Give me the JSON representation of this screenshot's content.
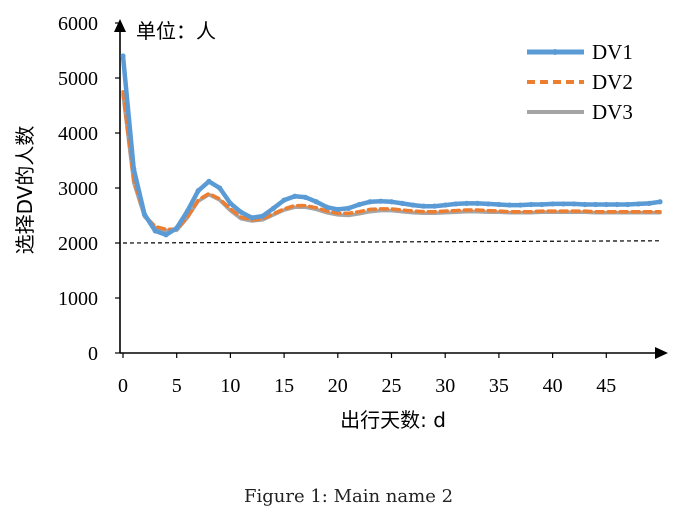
{
  "caption": "Figure 1: Main name 2",
  "chart_data": {
    "type": "line",
    "title": "",
    "unit_label": "单位：人",
    "xlabel": "出行天数: d",
    "ylabel": "选择DV的人数",
    "xlim": [
      0,
      50
    ],
    "ylim": [
      0,
      6000
    ],
    "x_ticks": [
      0,
      5,
      10,
      15,
      20,
      25,
      30,
      35,
      40,
      45
    ],
    "y_ticks": [
      0,
      1000,
      2000,
      3000,
      4000,
      5000,
      6000
    ],
    "legend_position": "top-right",
    "reference_line": {
      "y": 2000,
      "y_end": 2040,
      "style": "dashed",
      "color": "#000000"
    },
    "x": [
      0,
      1,
      2,
      3,
      4,
      5,
      6,
      7,
      8,
      9,
      10,
      11,
      12,
      13,
      14,
      15,
      16,
      17,
      18,
      19,
      20,
      21,
      22,
      23,
      24,
      25,
      26,
      27,
      28,
      29,
      30,
      31,
      32,
      33,
      34,
      35,
      36,
      37,
      38,
      39,
      40,
      41,
      42,
      43,
      44,
      45,
      46,
      47,
      48,
      49,
      50
    ],
    "series": [
      {
        "name": "DV1",
        "color": "#5b9bd5",
        "dash": "solid",
        "values": [
          5400,
          3350,
          2520,
          2220,
          2150,
          2270,
          2580,
          2950,
          3120,
          3000,
          2720,
          2560,
          2460,
          2490,
          2630,
          2780,
          2850,
          2830,
          2750,
          2650,
          2610,
          2630,
          2700,
          2750,
          2760,
          2750,
          2720,
          2690,
          2670,
          2670,
          2690,
          2710,
          2720,
          2720,
          2710,
          2700,
          2690,
          2690,
          2700,
          2700,
          2710,
          2710,
          2710,
          2700,
          2700,
          2700,
          2700,
          2700,
          2710,
          2720,
          2750
        ]
      },
      {
        "name": "DV2",
        "color": "#ed7d31",
        "dash": "dashed",
        "values": [
          4750,
          3150,
          2500,
          2300,
          2250,
          2250,
          2470,
          2780,
          2900,
          2800,
          2620,
          2470,
          2420,
          2440,
          2530,
          2620,
          2680,
          2680,
          2640,
          2580,
          2540,
          2540,
          2570,
          2610,
          2620,
          2620,
          2600,
          2580,
          2570,
          2570,
          2580,
          2590,
          2600,
          2600,
          2590,
          2580,
          2570,
          2570,
          2570,
          2580,
          2580,
          2580,
          2580,
          2580,
          2570,
          2570,
          2570,
          2570,
          2570,
          2570,
          2570
        ]
      },
      {
        "name": "DV3",
        "color": "#a5a5a5",
        "dash": "solid",
        "values": [
          4700,
          3100,
          2480,
          2280,
          2230,
          2230,
          2460,
          2760,
          2880,
          2780,
          2590,
          2440,
          2400,
          2420,
          2510,
          2600,
          2650,
          2650,
          2610,
          2550,
          2510,
          2500,
          2530,
          2570,
          2590,
          2590,
          2570,
          2550,
          2540,
          2540,
          2550,
          2560,
          2570,
          2570,
          2560,
          2560,
          2550,
          2550,
          2550,
          2560,
          2560,
          2560,
          2560,
          2560,
          2550,
          2550,
          2550,
          2550,
          2550,
          2550,
          2550
        ]
      }
    ]
  }
}
